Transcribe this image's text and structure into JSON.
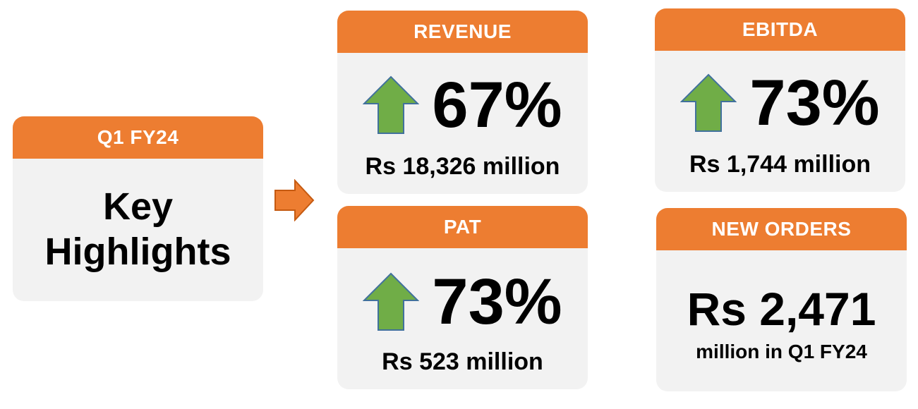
{
  "intro": {
    "header": "Q1 FY24",
    "title_line1": "Key",
    "title_line2": "Highlights"
  },
  "revenue": {
    "header": "REVENUE",
    "change": "67%",
    "value": "Rs 18,326 million",
    "arrow_icon": "up-arrow-icon"
  },
  "ebitda": {
    "header": "EBITDA",
    "change": "73%",
    "value": "Rs 1,744 million",
    "arrow_icon": "up-arrow-icon"
  },
  "pat": {
    "header": "PAT",
    "change": "73%",
    "value": "Rs 523 million",
    "arrow_icon": "up-arrow-icon"
  },
  "orders": {
    "header": "NEW ORDERS",
    "amount": "Rs 2,471",
    "caption": "million in Q1 FY24"
  },
  "colors": {
    "accent": "#ed7d31",
    "card_bg": "#f2f2f2",
    "up_arrow": "#70ad47"
  }
}
